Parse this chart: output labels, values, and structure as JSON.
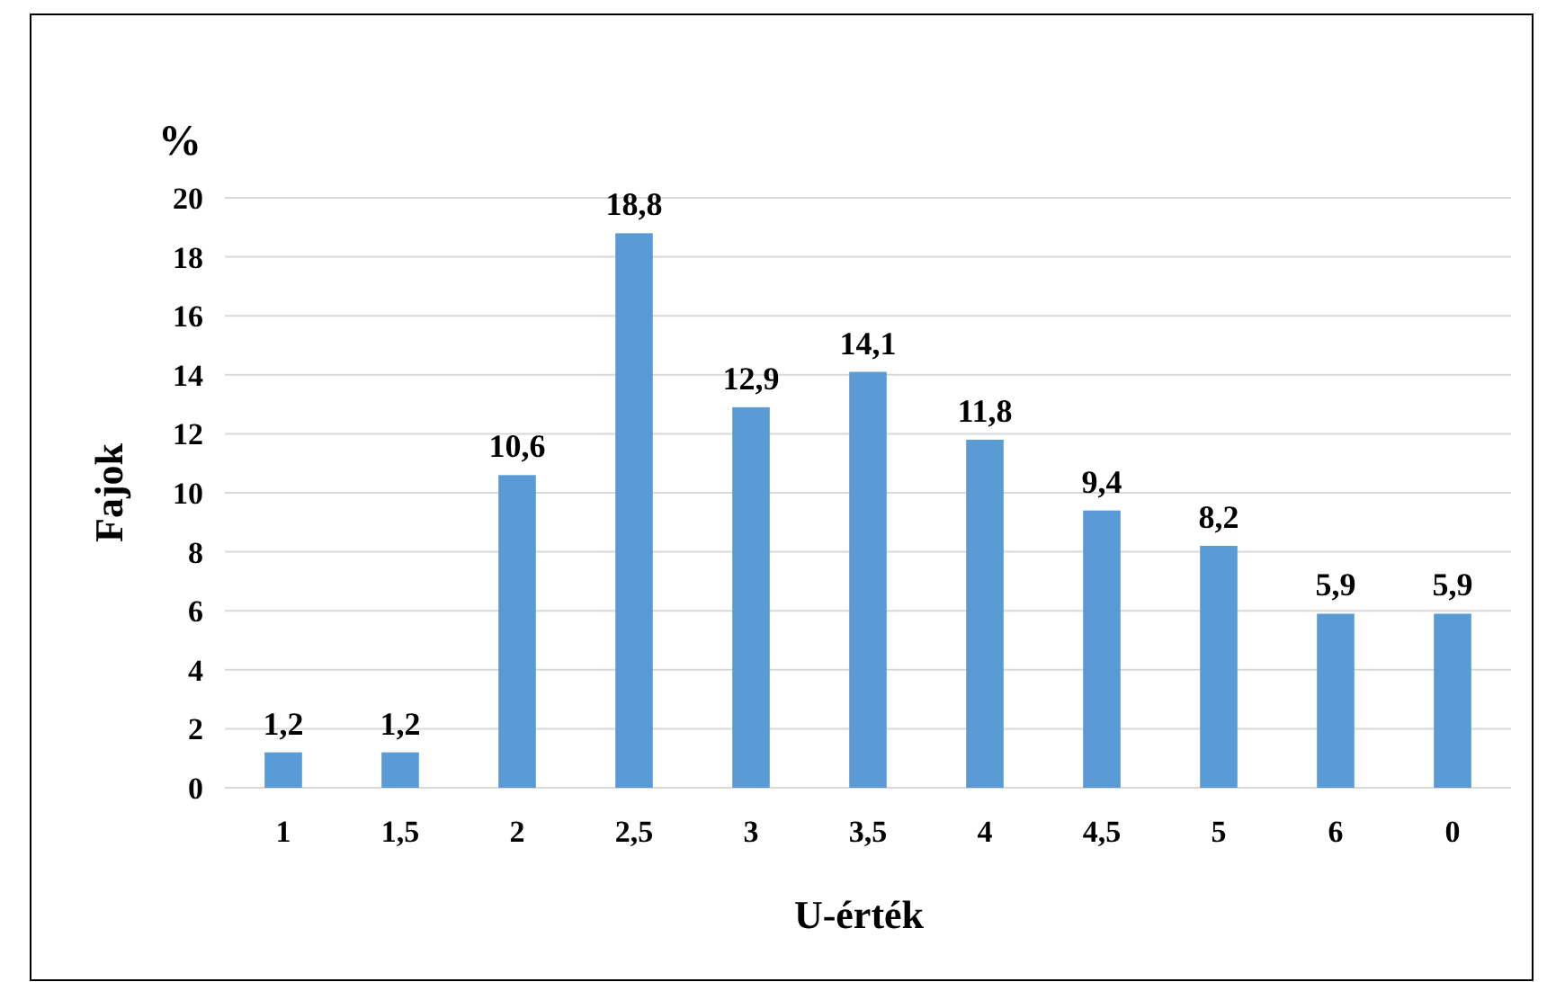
{
  "chart_data": {
    "type": "bar",
    "xlabel": "U-érték",
    "ylabel": "Fajok",
    "annotations": [
      "%"
    ],
    "categories": [
      "1",
      "1,5",
      "2",
      "2,5",
      "3",
      "3,5",
      "4",
      "4,5",
      "5",
      "6",
      "0"
    ],
    "values": [
      1.2,
      1.2,
      10.6,
      18.8,
      12.9,
      14.1,
      11.8,
      9.4,
      8.2,
      5.9,
      5.9
    ],
    "value_labels": [
      "1,2",
      "1,2",
      "10,6",
      "18,8",
      "12,9",
      "14,1",
      "11,8",
      "9,4",
      "8,2",
      "5,9",
      "5,9"
    ],
    "color": "#5b9bd5",
    "ylim": [
      0,
      20
    ],
    "yticks": [
      0,
      2,
      4,
      6,
      8,
      10,
      12,
      14,
      16,
      18,
      20
    ],
    "grid": "y"
  }
}
